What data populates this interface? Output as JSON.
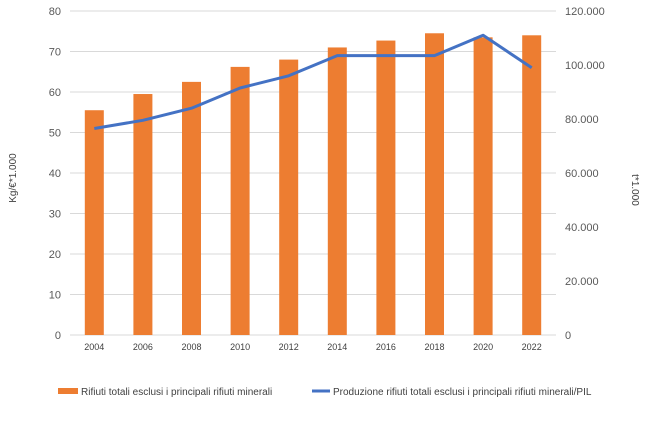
{
  "chart_data": {
    "type": "bar",
    "categories": [
      "2004",
      "2006",
      "2008",
      "2010",
      "2012",
      "2014",
      "2016",
      "2018",
      "2020",
      "2022"
    ],
    "series": [
      {
        "name": "Rifiuti totali esclusi i principali rifiuti minerali",
        "type": "bar",
        "axis": "left",
        "color": "#ED7D31",
        "values": [
          55.5,
          59.5,
          62.5,
          66.2,
          68.0,
          71.0,
          72.7,
          74.5,
          73.5,
          74.0
        ]
      },
      {
        "name": "Produzione rifiuti totali esclusi i principali rifiuti minerali/PIL",
        "type": "line",
        "axis": "right",
        "color": "#4472C4",
        "values": [
          76500,
          79500,
          84000,
          91500,
          96000,
          103500,
          103500,
          103500,
          111000,
          99000
        ]
      }
    ],
    "ylabel": "Kg/€*1.000",
    "y2label": "t*1.000",
    "ylim": [
      0,
      80
    ],
    "y2lim": [
      0,
      120000
    ],
    "yticks": [
      "0",
      "10",
      "20",
      "30",
      "40",
      "50",
      "60",
      "70",
      "80"
    ],
    "y2ticks": [
      "0",
      "20.000",
      "40.000",
      "60.000",
      "80.000",
      "100.000",
      "120.000"
    ],
    "grid": true,
    "legend": "bottom"
  }
}
